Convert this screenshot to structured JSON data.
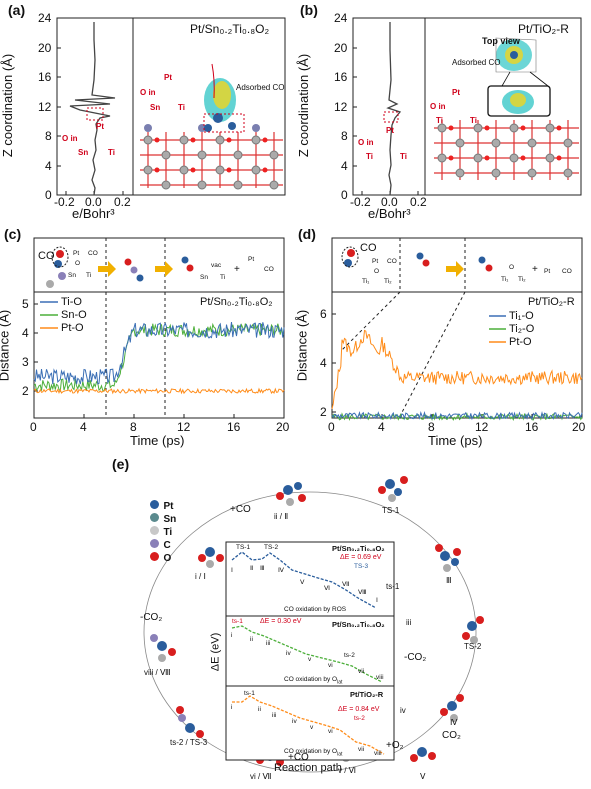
{
  "panels": {
    "a": {
      "label": "(a)",
      "title": "Pt/Sn₀.₂Ti₀.₈O₂",
      "ylabel": "Z coordination (Å)",
      "xlabel": "e/Bohr³",
      "yticks": [
        "24",
        "20",
        "16",
        "12",
        "8",
        "4",
        "0"
      ],
      "xticks": [
        "-0.2",
        "0.0",
        "0.2"
      ],
      "annot_adsorbed": "Adsorbed CO",
      "annot_oin1": "O in",
      "annot_pt1": "Pt",
      "annot_sn1": "Sn",
      "annot_ti1": "Ti",
      "annot_oin2": "O in",
      "annot_pt2": "Pt",
      "annot_sn2": "Sn",
      "annot_ti2": "Ti"
    },
    "b": {
      "label": "(b)",
      "title": "Pt/TiO₂-R",
      "ylabel": "Z coordination (Å)",
      "xlabel": "e/Bohr³",
      "yticks": [
        "24",
        "20",
        "16",
        "12",
        "8",
        "4",
        "0"
      ],
      "xticks": [
        "-0.2",
        "0.0",
        "0.2"
      ],
      "annot_topview": "Top view",
      "annot_adsorbed": "Adsorbed CO",
      "annot_oin1": "O in",
      "annot_pt1": "Pt",
      "annot_ti1a": "Ti",
      "annot_ti1b": "Ti",
      "annot_oin2": "O in",
      "annot_pt2": "Pt",
      "annot_ti2a": "Ti",
      "annot_ti2b": "Ti"
    },
    "c": {
      "label": "(c)",
      "title": "Pt/Sn₀.₂Ti₀.₈O₂",
      "ylabel": "Distance (Å)",
      "xlabel": "Time (ps)",
      "yticks": [
        "5",
        "4",
        "3",
        "2"
      ],
      "xticks": [
        "0",
        "4",
        "8",
        "12",
        "16",
        "20"
      ],
      "legend": [
        "Ti-O",
        "Sn-O",
        "Pt-O"
      ],
      "scheme_co": "CO",
      "scheme_pt": "Pt",
      "scheme_co2": "CO",
      "scheme_sn": "Sn",
      "scheme_ti": "Ti",
      "scheme_vac": "vac",
      "scheme_sn2": "Sn",
      "scheme_ti2": "Ti",
      "scheme_plus": "+",
      "scheme_pt2": "Pt",
      "scheme_co3": "CO",
      "scheme_o": "O"
    },
    "d": {
      "label": "(d)",
      "title": "Pt/TiO₂-R",
      "ylabel": "Distance (Å)",
      "xlabel": "Time (ps)",
      "yticks": [
        "6",
        "4",
        "2"
      ],
      "xticks": [
        "0",
        "4",
        "8",
        "12",
        "16",
        "20"
      ],
      "legend": [
        "Ti₁-O",
        "Ti₂-O",
        "Pt-O"
      ],
      "scheme_co": "CO",
      "scheme_pt": "Pt",
      "scheme_co2": "CO",
      "scheme_ti1": "Ti₁",
      "scheme_ti2": "Ti₂",
      "scheme_o": "O",
      "scheme_ti1b": "Ti₁",
      "scheme_ti2b": "Ti₂",
      "scheme_plus": "+",
      "scheme_pt2": "Pt",
      "scheme_co3": "CO"
    },
    "e": {
      "label": "(e)",
      "legend": [
        {
          "sym": "Pt",
          "color": "#2a5d9c"
        },
        {
          "sym": "Sn",
          "color": "#5b8a8e"
        },
        {
          "sym": "Ti",
          "color": "#c8c8c8"
        },
        {
          "sym": "C",
          "color": "#8a80b8"
        },
        {
          "sym": "O",
          "color": "#d81e1e"
        }
      ],
      "cycle_labels": {
        "addco_top": "+CO",
        "ii": "ii / Ⅱ",
        "i": "i / Ⅰ",
        "co2_left": "-CO₂",
        "viii": "viii / Ⅷ",
        "ts2ts3": "ts-2 / TS-3",
        "vi": "vi / Ⅶ",
        "addco_bottom": "+CO",
        "v": "v / Ⅵ",
        "o2": "+O₂",
        "V": "Ⅴ",
        "co2_right": "CO₂",
        "IV": "Ⅳ",
        "iv": "iv",
        "minus_co2_mid": "-CO₂",
        "iii": "iii",
        "TS2": "TS-2",
        "III": "Ⅲ",
        "ts1": "ts-1",
        "TS1": "TS-1",
        "minus_co2_right": "-"
      },
      "inset": {
        "ylabel": "ΔE (eV)",
        "xlabel": "Reaction path",
        "sub1_title": "Pt/Sn₀.₂Ti₀.₈O₂",
        "sub1_de": "ΔE = 0.69 eV",
        "sub1_ts": "TS-3",
        "sub1_caption": "CO oxidation by ROS",
        "sub1_pts": [
          "Ⅰ",
          "TS-1",
          "Ⅱ",
          "Ⅲ",
          "TS-2",
          "Ⅳ",
          "Ⅴ",
          "Ⅵ",
          "Ⅶ",
          "Ⅷ",
          "Ⅰ"
        ],
        "sub2_title": "Pt/Sn₀.₂Ti₀.₈O₂",
        "sub2_de": "ΔE = 0.30 eV",
        "sub2_ts": "ts-1",
        "sub2_caption": "CO oxidation by O",
        "sub2_caption_sub": "lat",
        "sub2_pts": [
          "i",
          "ii",
          "iii",
          "iv",
          "v",
          "vi",
          "ts-2",
          "vii",
          "viii"
        ],
        "sub3_title": "Pt/TiO₂-R",
        "sub3_de": "ΔE = 0.84 eV",
        "sub3_ts": "ts-2",
        "sub3_caption": "CO oxidation by O",
        "sub3_caption_sub": "lat",
        "sub3_pts": [
          "i",
          "ts-1",
          "ii",
          "iii",
          "iv",
          "v",
          "vi",
          "vii",
          "viii"
        ]
      }
    }
  },
  "colors": {
    "tiO": "#3b6fb5",
    "snO": "#4caf3a",
    "ptO": "#ff8c1a",
    "red": "#d0021b"
  }
}
